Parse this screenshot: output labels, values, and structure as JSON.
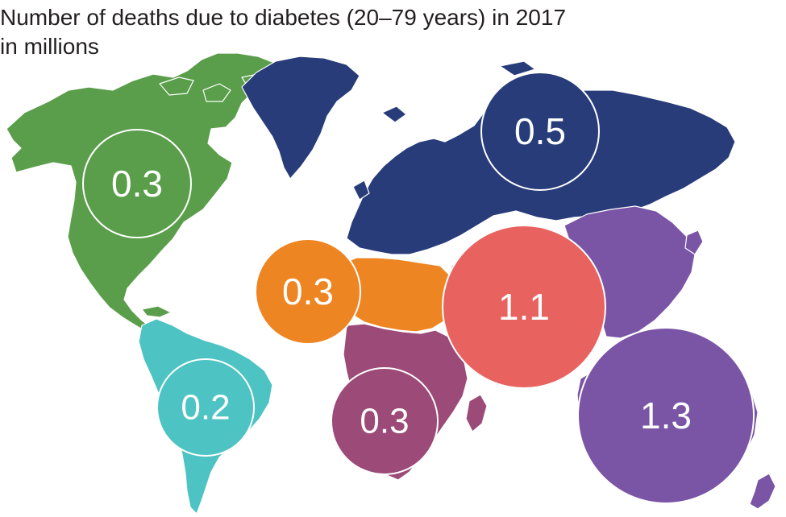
{
  "title": {
    "line1": "Number of deaths due to diabetes (20–79 years) in 2017",
    "line2": "in millions"
  },
  "regions": [
    {
      "id": "north-america-caribbean",
      "value": "0.3",
      "color": "#5a9e4b"
    },
    {
      "id": "south-central-america",
      "value": "0.2",
      "color": "#4ec3c3"
    },
    {
      "id": "europe",
      "value": "0.5",
      "color": "#283c7a"
    },
    {
      "id": "middle-east-north-africa",
      "value": "0.3",
      "color": "#ee8523"
    },
    {
      "id": "africa",
      "value": "0.3",
      "color": "#9c4a78"
    },
    {
      "id": "south-east-asia",
      "value": "1.1",
      "color": "#e8635f"
    },
    {
      "id": "western-pacific",
      "value": "1.3",
      "color": "#7a55a6"
    }
  ]
}
